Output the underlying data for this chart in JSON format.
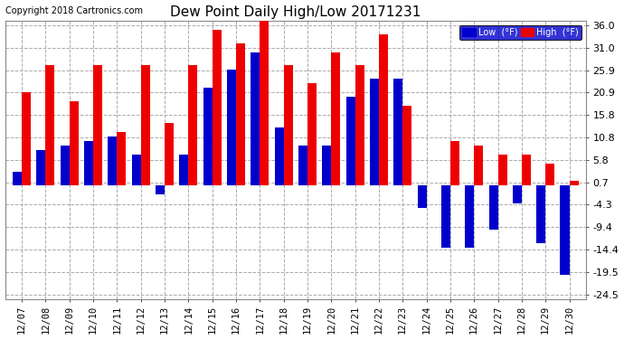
{
  "title": "Dew Point Daily High/Low 20171231",
  "copyright": "Copyright 2018 Cartronics.com",
  "dates": [
    "12/07",
    "12/08",
    "12/09",
    "12/10",
    "12/11",
    "12/12",
    "12/13",
    "12/14",
    "12/15",
    "12/16",
    "12/17",
    "12/18",
    "12/19",
    "12/20",
    "12/21",
    "12/22",
    "12/23",
    "12/24",
    "12/25",
    "12/26",
    "12/27",
    "12/28",
    "12/29",
    "12/30"
  ],
  "high_values": [
    21,
    27,
    19,
    27,
    12,
    27,
    14,
    27,
    35,
    32,
    37,
    27,
    23,
    30,
    27,
    34,
    18,
    0,
    10,
    9,
    7,
    7,
    5,
    1
  ],
  "low_values": [
    3,
    8,
    9,
    10,
    11,
    7,
    -2,
    7,
    22,
    26,
    30,
    13,
    9,
    9,
    20,
    24,
    24,
    -5,
    -14,
    -14,
    -10,
    -4,
    -13,
    -20
  ],
  "bar_width": 0.38,
  "high_color": "#EE0000",
  "low_color": "#0000CC",
  "bg_color": "#FFFFFF",
  "plot_bg_color": "#FFFFFF",
  "grid_color": "#AAAAAA",
  "yticks": [
    36.0,
    31.0,
    25.9,
    20.9,
    15.8,
    10.8,
    5.8,
    0.7,
    -4.3,
    -9.4,
    -14.4,
    -19.5,
    -24.5
  ],
  "legend_low_label": "Low  (°F)",
  "legend_high_label": "High  (°F)"
}
